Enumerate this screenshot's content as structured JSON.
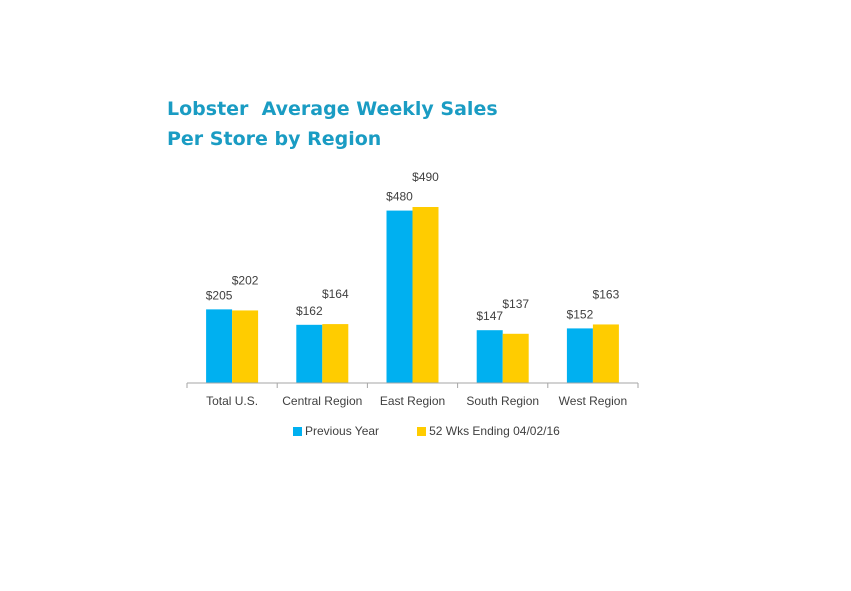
{
  "chart_data": {
    "type": "bar",
    "title_lines": [
      "Lobster  Average Weekly Sales",
      "Per Store by Region"
    ],
    "categories": [
      "Total U.S.",
      "Central Region",
      "East Region",
      "South Region",
      "West Region"
    ],
    "series": [
      {
        "name": "Previous Year",
        "color": "#00b0f0",
        "values": [
          205,
          162,
          480,
          147,
          152
        ],
        "labels": [
          "$205",
          "$162",
          "$480",
          "$147",
          "$152"
        ]
      },
      {
        "name": "52 Wks Ending 04/02/16",
        "color": "#ffcc00",
        "values": [
          202,
          164,
          490,
          137,
          163
        ],
        "labels": [
          "$202",
          "$164",
          "$490",
          "$137",
          "$163"
        ]
      }
    ],
    "ylim": [
      0,
      550
    ],
    "grid": false,
    "legend_position": "bottom"
  }
}
